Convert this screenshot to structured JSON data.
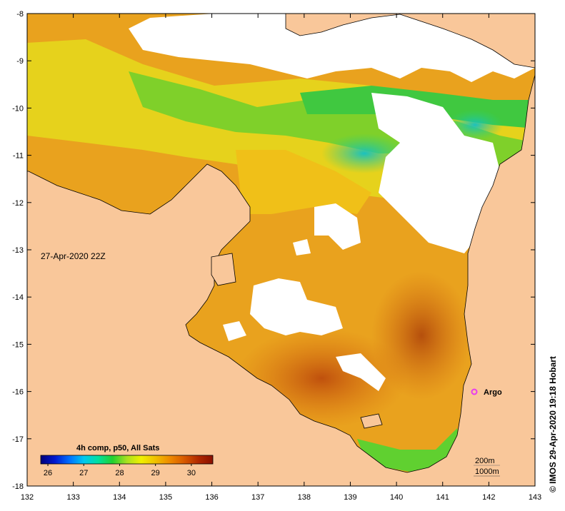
{
  "map": {
    "timestamp_label": "27-Apr-2020 22Z",
    "credit": "© IMOS 29-Apr-2020 19:18 Hobart",
    "float_label": "Argo",
    "float_color": "#e83cf0",
    "contours": [
      "200m",
      "1000m"
    ],
    "land_color": "#f9c79a",
    "cloud_color": "#ffffff",
    "x_axis": {
      "range": [
        132,
        143
      ],
      "ticks": [
        "132",
        "133",
        "134",
        "135",
        "136",
        "137",
        "138",
        "139",
        "140",
        "141",
        "142",
        "143"
      ]
    },
    "y_axis": {
      "range": [
        -18,
        -8
      ],
      "ticks": [
        "-8",
        "-9",
        "-10",
        "-11",
        "-12",
        "-13",
        "-14",
        "-15",
        "-16",
        "-17",
        "-18"
      ]
    }
  },
  "colorbar": {
    "title": "4h comp, p50, All Sats",
    "range": [
      25.8,
      30.6
    ],
    "ticks": [
      "26",
      "27",
      "28",
      "29",
      "30"
    ],
    "colors": [
      "#00007a",
      "#0018d0",
      "#0070ff",
      "#00c8f0",
      "#00e0a0",
      "#22d030",
      "#a8e020",
      "#f0f000",
      "#f0c000",
      "#ee8a00",
      "#d85a00",
      "#b02800",
      "#8a1000"
    ]
  }
}
